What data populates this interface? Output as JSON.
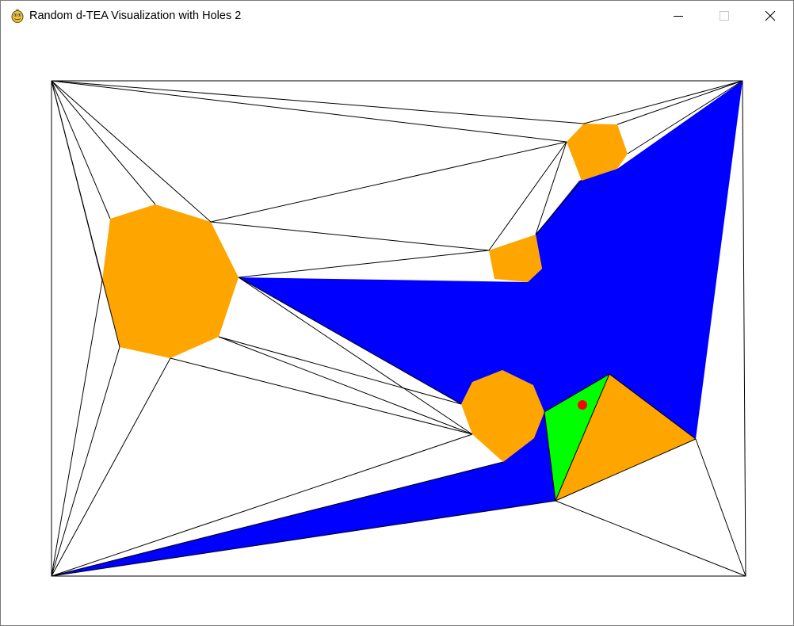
{
  "window": {
    "title": "Random d-TEA Visualization with Holes 2",
    "app_icon": "pygame-snake-icon",
    "controls": [
      "minimize-icon",
      "maximize-icon",
      "close-icon"
    ]
  },
  "scene": {
    "background_color": "#ffffff",
    "hole_color": "#ffa500",
    "region_color": "#0000ff",
    "active_triangle_color": "#00ff00",
    "point_color": "#ff0000",
    "edge_color": "#000000"
  }
}
